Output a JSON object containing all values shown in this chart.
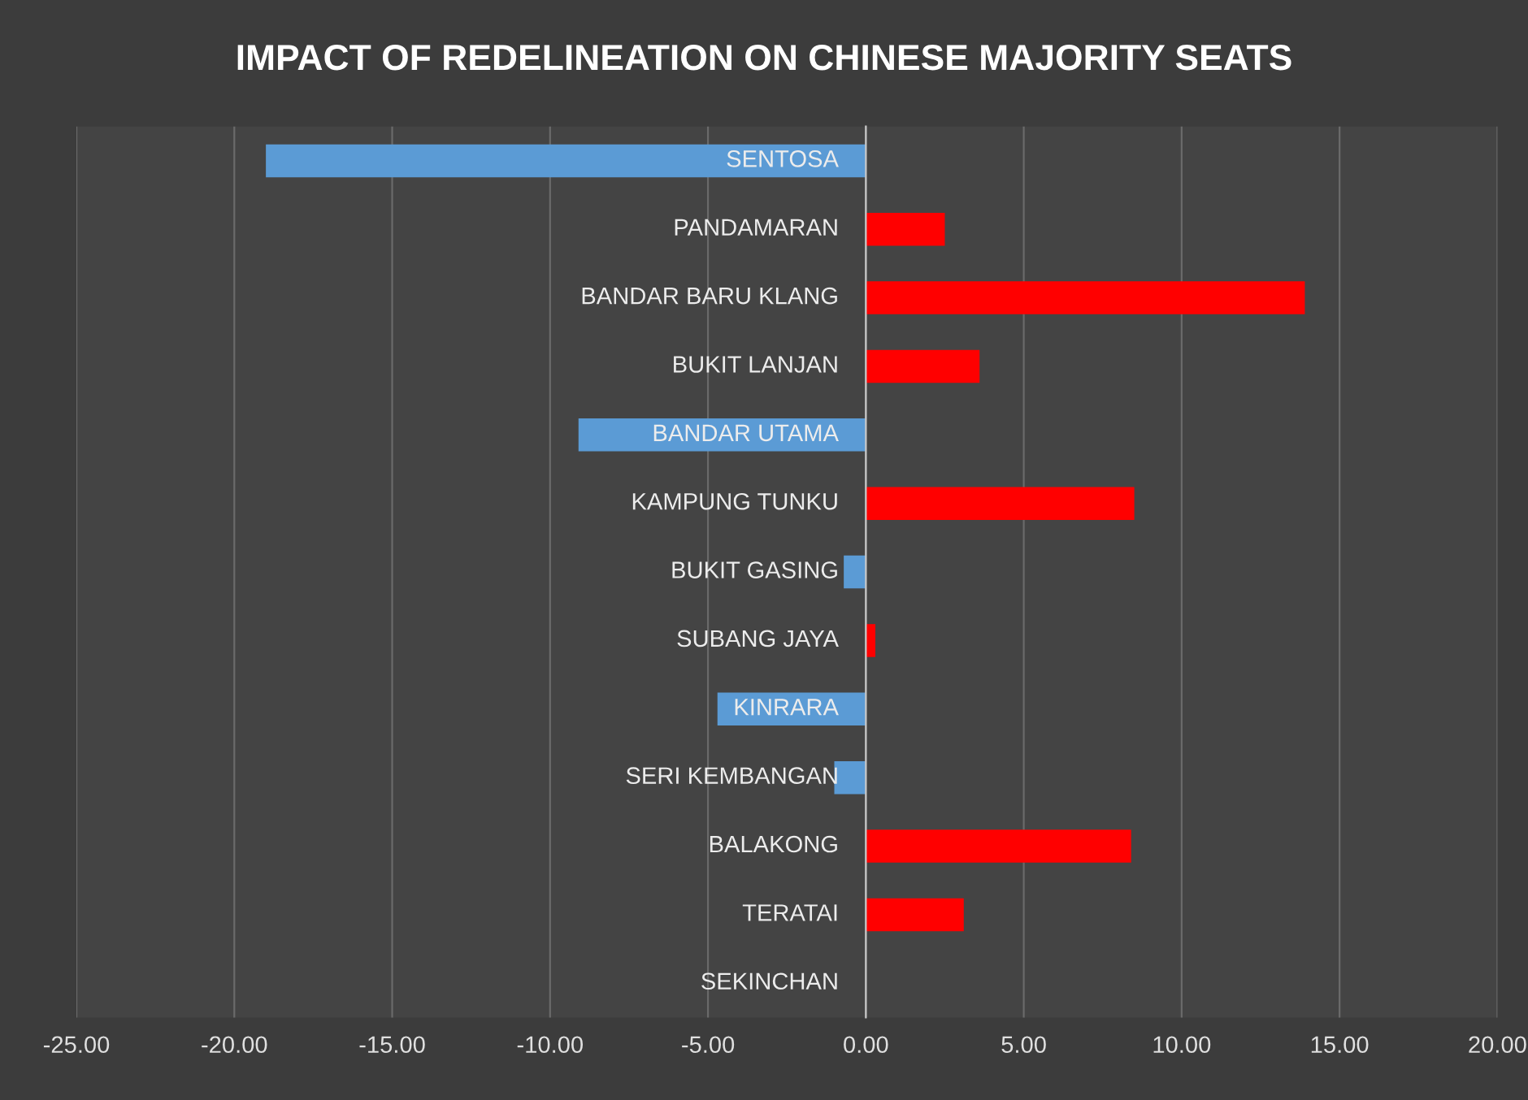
{
  "chart_data": {
    "type": "bar",
    "orientation": "horizontal",
    "title": "IMPACT OF REDELINEATION ON CHINESE MAJORITY SEATS",
    "categories": [
      "SENTOSA",
      "PANDAMARAN",
      "BANDAR BARU KLANG",
      "BUKIT LANJAN",
      "BANDAR UTAMA",
      "KAMPUNG TUNKU",
      "BUKIT GASING",
      "SUBANG JAYA",
      "KINRARA",
      "SERI KEMBANGAN",
      "BALAKONG",
      "TERATAI",
      "SEKINCHAN"
    ],
    "values": [
      -19.0,
      2.5,
      13.9,
      3.6,
      -9.1,
      8.5,
      -0.7,
      0.3,
      -4.7,
      -1.0,
      8.4,
      3.1,
      0
    ],
    "colors": [
      "#5b9bd5",
      "#ff0000",
      "#ff0000",
      "#ff0000",
      "#5b9bd5",
      "#ff0000",
      "#5b9bd5",
      "#ff0000",
      "#5b9bd5",
      "#5b9bd5",
      "#ff0000",
      "#ff0000",
      "#ff0000"
    ],
    "xlim": [
      -25,
      20
    ],
    "xticks": [
      {
        "value": -25,
        "label": "-25.00"
      },
      {
        "value": -20,
        "label": "-20.00"
      },
      {
        "value": -15,
        "label": "-15.00"
      },
      {
        "value": -10,
        "label": "-10.00"
      },
      {
        "value": -5,
        "label": "-5.00"
      },
      {
        "value": 0,
        "label": "0.00"
      },
      {
        "value": 5,
        "label": "5.00"
      },
      {
        "value": 10,
        "label": "10.00"
      },
      {
        "value": 15,
        "label": "15.00"
      },
      {
        "value": 20,
        "label": "20.00"
      }
    ],
    "grid": "x",
    "legend": false
  }
}
